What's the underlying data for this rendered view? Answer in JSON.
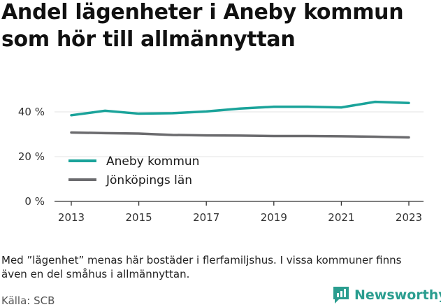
{
  "title": "Andel lägenheter i Aneby kommun som hör till allmännyttan",
  "note": "Med ”lägenhet” menas här bostäder i flerfamiljshus. I vissa kommuner finns även en del småhus i allmännyttan.",
  "source": "Källa: SCB",
  "brand": {
    "name": "Newsworthy",
    "icon": "newsworthy-logo-icon"
  },
  "colors": {
    "aneby": "#1aa39a",
    "lan": "#6b6b6e",
    "axis": "#333333",
    "grid": "#e3e3e3"
  },
  "chart_data": {
    "type": "line",
    "x": [
      2013,
      2014,
      2015,
      2016,
      2017,
      2018,
      2019,
      2020,
      2021,
      2022,
      2023
    ],
    "series": [
      {
        "name": "Aneby kommun",
        "values": [
          38.5,
          40.5,
          39.2,
          39.4,
          40.2,
          41.5,
          42.3,
          42.3,
          42.0,
          44.5,
          44.0
        ]
      },
      {
        "name": "Jönköpings län",
        "values": [
          30.8,
          30.5,
          30.3,
          29.7,
          29.5,
          29.4,
          29.2,
          29.2,
          29.1,
          28.9,
          28.6
        ]
      }
    ],
    "ylim": [
      0,
      50
    ],
    "y_ticks": [
      0,
      20,
      40
    ],
    "y_tick_labels": [
      "0 %",
      "20 %",
      "40 %"
    ],
    "x_ticks": [
      2013,
      2015,
      2017,
      2019,
      2021,
      2023
    ],
    "x_tick_labels": [
      "2013",
      "2015",
      "2017",
      "2019",
      "2021",
      "2023"
    ],
    "grid": true,
    "legend_position": "bottom-left inside plot"
  }
}
